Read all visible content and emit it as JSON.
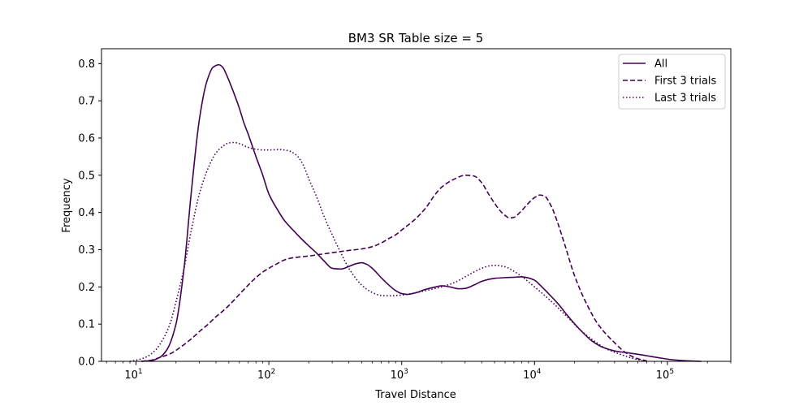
{
  "chart_data": {
    "type": "line",
    "title": "BM3 SR Table size = 5",
    "xlabel": "Travel Distance",
    "ylabel": "Frequency",
    "xscale": "log",
    "xlim": [
      5.5,
      300000
    ],
    "ylim": [
      0,
      0.84
    ],
    "xticks": [
      {
        "value": 10,
        "base": "10",
        "exp": "1"
      },
      {
        "value": 100,
        "base": "10",
        "exp": "2"
      },
      {
        "value": 1000,
        "base": "10",
        "exp": "3"
      },
      {
        "value": 10000,
        "base": "10",
        "exp": "4"
      },
      {
        "value": 100000,
        "base": "10",
        "exp": "5"
      }
    ],
    "yticks": [
      "0.0",
      "0.1",
      "0.2",
      "0.3",
      "0.4",
      "0.5",
      "0.6",
      "0.7",
      "0.8"
    ],
    "grid": false,
    "legend_position": "top-right",
    "color": "#440154",
    "series": [
      {
        "name": "All",
        "style": "solid",
        "x": [
          11,
          13,
          15,
          17,
          20,
          23,
          26,
          30,
          34,
          38,
          42,
          45,
          48,
          52,
          56,
          60,
          65,
          70,
          80,
          90,
          100,
          115,
          130,
          150,
          175,
          200,
          230,
          260,
          300,
          350,
          400,
          450,
          500,
          550,
          600,
          700,
          800,
          900,
          1000,
          1100,
          1300,
          1500,
          1800,
          2000,
          2300,
          2700,
          3000,
          3500,
          4000,
          5000,
          6000,
          7000,
          8000,
          9000,
          10000,
          11000,
          12500,
          15000,
          18000,
          22000,
          27000,
          33000,
          40000,
          50000,
          60000,
          70000,
          85000,
          100000,
          120000,
          150000,
          180000
        ],
        "y": [
          0.0,
          0.002,
          0.01,
          0.03,
          0.1,
          0.25,
          0.45,
          0.65,
          0.75,
          0.79,
          0.797,
          0.79,
          0.77,
          0.74,
          0.71,
          0.68,
          0.64,
          0.61,
          0.55,
          0.5,
          0.45,
          0.41,
          0.38,
          0.355,
          0.33,
          0.31,
          0.29,
          0.27,
          0.25,
          0.248,
          0.255,
          0.262,
          0.265,
          0.26,
          0.25,
          0.225,
          0.205,
          0.19,
          0.182,
          0.18,
          0.185,
          0.193,
          0.2,
          0.203,
          0.2,
          0.195,
          0.196,
          0.205,
          0.215,
          0.223,
          0.225,
          0.226,
          0.227,
          0.224,
          0.218,
          0.205,
          0.185,
          0.155,
          0.12,
          0.085,
          0.055,
          0.037,
          0.028,
          0.023,
          0.019,
          0.015,
          0.01,
          0.006,
          0.003,
          0.001,
          0.0
        ]
      },
      {
        "name": "First 3 trials",
        "style": "dashed",
        "x": [
          11,
          13,
          15,
          18,
          22,
          26,
          30,
          35,
          40,
          45,
          50,
          60,
          70,
          80,
          90,
          100,
          115,
          130,
          150,
          175,
          200,
          250,
          300,
          400,
          500,
          600,
          700,
          800,
          900,
          1000,
          1200,
          1500,
          1800,
          2000,
          2500,
          3000,
          3500,
          4000,
          4500,
          5000,
          5500,
          6000,
          6500,
          7000,
          8000,
          9000,
          10000,
          11000,
          12000,
          13000,
          14000,
          15000,
          17000,
          20000,
          25000,
          30000,
          40000,
          50000,
          60000,
          70000
        ],
        "y": [
          0.0,
          0.003,
          0.01,
          0.02,
          0.04,
          0.06,
          0.08,
          0.1,
          0.12,
          0.135,
          0.15,
          0.18,
          0.205,
          0.225,
          0.24,
          0.25,
          0.262,
          0.272,
          0.278,
          0.281,
          0.283,
          0.288,
          0.292,
          0.298,
          0.302,
          0.308,
          0.318,
          0.33,
          0.34,
          0.353,
          0.375,
          0.41,
          0.45,
          0.468,
          0.49,
          0.5,
          0.498,
          0.48,
          0.45,
          0.425,
          0.405,
          0.392,
          0.385,
          0.387,
          0.405,
          0.425,
          0.44,
          0.447,
          0.443,
          0.425,
          0.4,
          0.37,
          0.31,
          0.23,
          0.15,
          0.1,
          0.05,
          0.02,
          0.007,
          0.001
        ]
      },
      {
        "name": "Last 3 trials",
        "style": "dotted",
        "x": [
          9,
          10,
          12,
          14,
          16,
          18,
          20,
          23,
          26,
          30,
          35,
          40,
          45,
          50,
          55,
          60,
          70,
          80,
          90,
          100,
          120,
          140,
          160,
          180,
          200,
          230,
          260,
          300,
          350,
          400,
          500,
          600,
          700,
          800,
          1000,
          1300,
          1600,
          2000,
          2500,
          3000,
          3500,
          4000,
          4500,
          5000,
          6000,
          7000,
          8000,
          10000,
          13000,
          17000,
          22000,
          28000,
          35000,
          45000,
          55000,
          65000
        ],
        "y": [
          0.0,
          0.003,
          0.012,
          0.03,
          0.06,
          0.1,
          0.16,
          0.25,
          0.35,
          0.45,
          0.52,
          0.56,
          0.578,
          0.587,
          0.588,
          0.585,
          0.575,
          0.57,
          0.568,
          0.568,
          0.569,
          0.566,
          0.555,
          0.53,
          0.49,
          0.44,
          0.39,
          0.34,
          0.29,
          0.25,
          0.205,
          0.185,
          0.177,
          0.176,
          0.178,
          0.185,
          0.192,
          0.2,
          0.212,
          0.227,
          0.24,
          0.25,
          0.256,
          0.258,
          0.254,
          0.242,
          0.228,
          0.2,
          0.165,
          0.125,
          0.085,
          0.055,
          0.033,
          0.018,
          0.008,
          0.002
        ]
      }
    ]
  }
}
